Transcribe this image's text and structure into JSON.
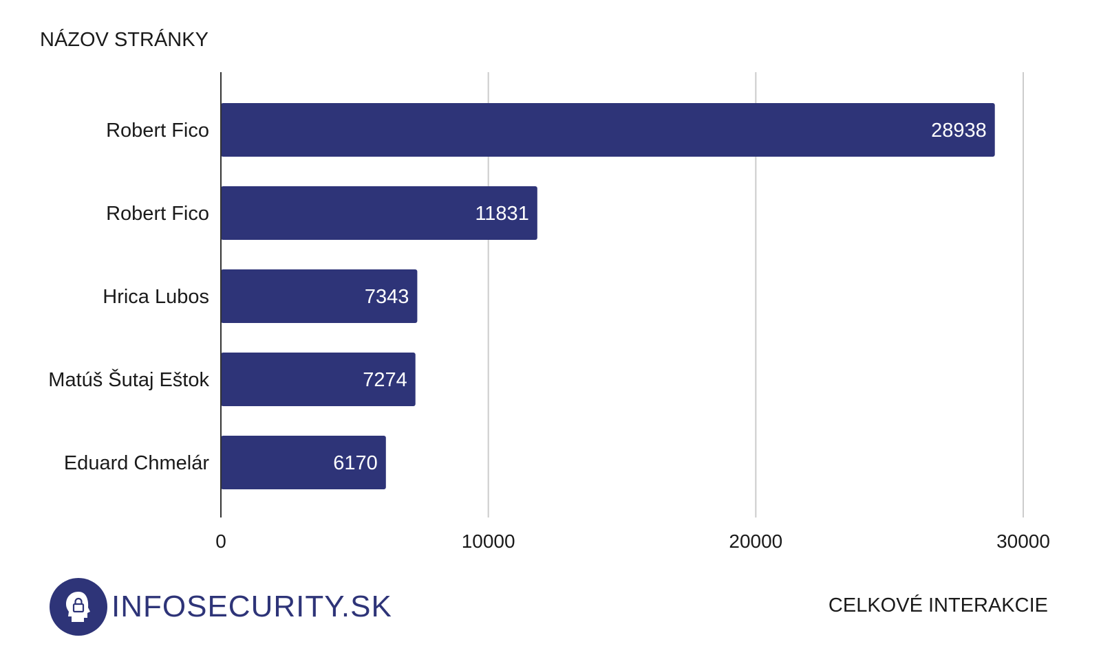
{
  "colors": {
    "bar": "#2e3478",
    "grid": "#cccccc",
    "axis": "#333333",
    "logo": "#2e3478"
  },
  "chart_data": {
    "type": "bar",
    "orientation": "horizontal",
    "title": "",
    "ylabel": "NÁZOV STRÁNKY",
    "xlabel": "CELKOVÉ INTERAKCIE",
    "categories": [
      "Robert Fico",
      "Robert Fico",
      "Hrica Lubos",
      "Matúš Šutaj Eštok",
      "Eduard Chmelár"
    ],
    "values": [
      28938,
      11831,
      7343,
      7274,
      6170
    ],
    "xlim": [
      0,
      30000
    ],
    "xticks": [
      0,
      10000,
      20000,
      30000
    ],
    "grid": true,
    "data_labels": true
  },
  "logo": {
    "text": "INFOSECURITY.SK",
    "icon": "head-lock-icon"
  }
}
